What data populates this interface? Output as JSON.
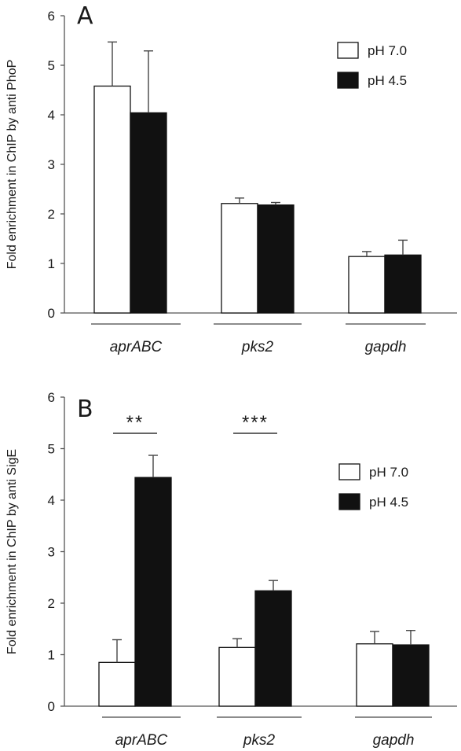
{
  "chart_data": [
    {
      "panel": "A",
      "type": "bar",
      "categories": [
        "aprABC",
        "pks2",
        "gapdh"
      ],
      "series": [
        {
          "name": "pH 7.0",
          "color": "#ffffff",
          "values": [
            4.58,
            2.21,
            1.14
          ],
          "errors": [
            0.89,
            0.11,
            0.1
          ]
        },
        {
          "name": "pH 4.5",
          "color": "#111111",
          "values": [
            4.04,
            2.18,
            1.17
          ],
          "errors": [
            1.25,
            0.05,
            0.3
          ]
        }
      ],
      "ylabel": "Fold enrichment in ChIP by anti PhoP",
      "ylim": [
        0,
        6
      ],
      "yticks": [
        "0",
        "1",
        "2",
        "3",
        "4",
        "5",
        "6"
      ],
      "legend_position": "top-right",
      "significance": []
    },
    {
      "panel": "B",
      "type": "bar",
      "categories": [
        "aprABC",
        "pks2",
        "gapdh"
      ],
      "series": [
        {
          "name": "pH 7.0",
          "color": "#ffffff",
          "values": [
            0.85,
            1.14,
            1.21
          ],
          "errors": [
            0.44,
            0.17,
            0.24
          ]
        },
        {
          "name": "pH 4.5",
          "color": "#111111",
          "values": [
            4.44,
            2.24,
            1.19
          ],
          "errors": [
            0.43,
            0.2,
            0.28
          ]
        }
      ],
      "ylabel": "Fold enrichment in ChIP by anti SigE",
      "ylim": [
        0,
        6
      ],
      "yticks": [
        "0",
        "1",
        "2",
        "3",
        "4",
        "5",
        "6"
      ],
      "legend_position": "top-right",
      "significance": [
        {
          "category": "aprABC",
          "label": "**"
        },
        {
          "category": "pks2",
          "label": "***"
        }
      ]
    }
  ]
}
